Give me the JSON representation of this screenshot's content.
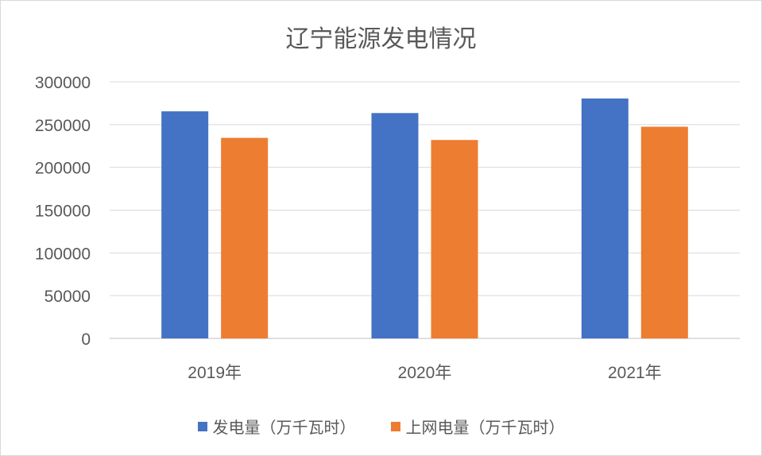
{
  "chart_data": {
    "type": "bar",
    "title": "辽宁能源发电情况",
    "categories": [
      "2019年",
      "2020年",
      "2021年"
    ],
    "series": [
      {
        "name": "发电量（万千瓦时）",
        "color": "#4472c4",
        "values": [
          265500,
          263500,
          280500
        ]
      },
      {
        "name": "上网电量（万千瓦时）",
        "color": "#ed7d31",
        "values": [
          234500,
          232000,
          247500
        ]
      }
    ],
    "yticks": [
      "0",
      "50000",
      "100000",
      "150000",
      "200000",
      "250000",
      "300000"
    ],
    "ylim": [
      0,
      300000
    ],
    "grid": true,
    "legend_position": "bottom"
  }
}
